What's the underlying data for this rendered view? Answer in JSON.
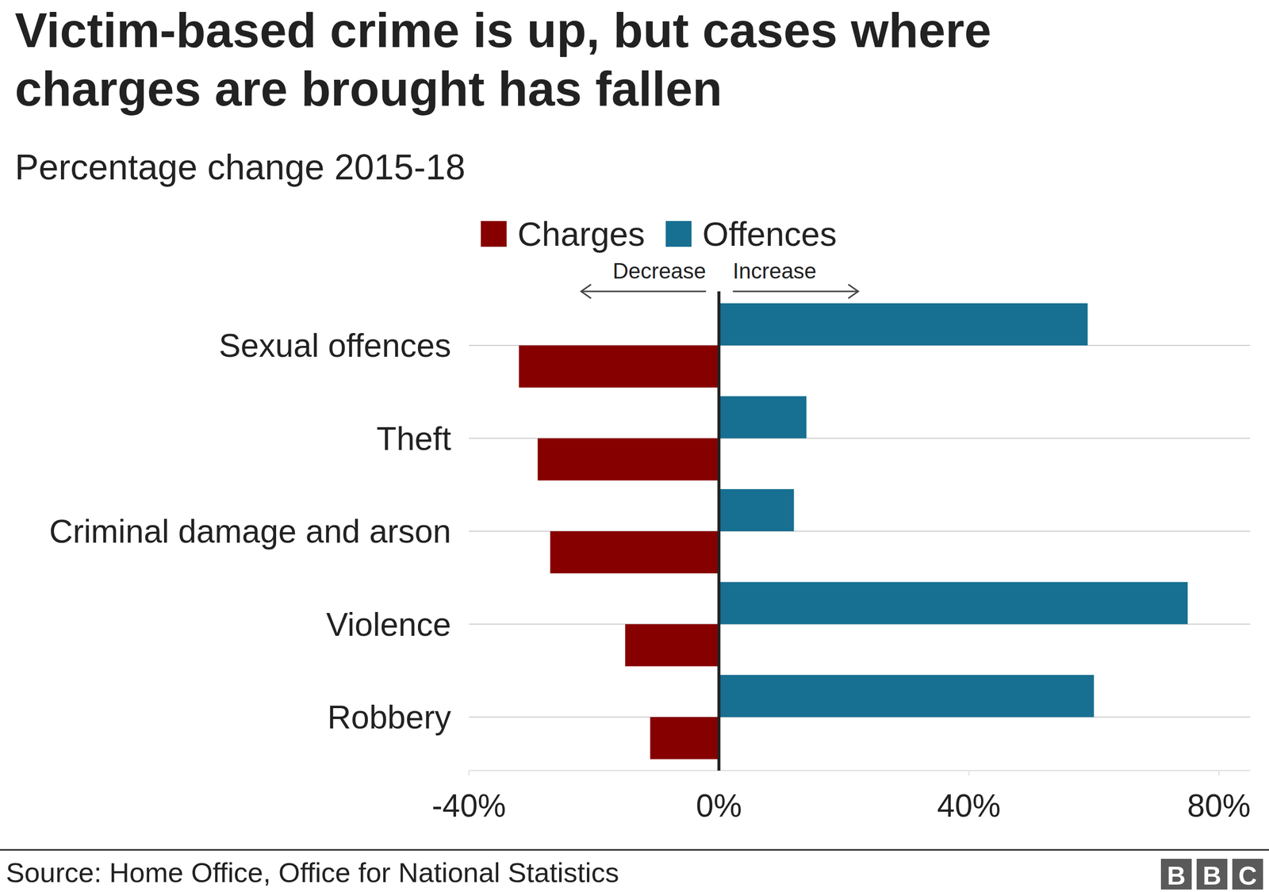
{
  "chart_data": {
    "type": "bar",
    "orientation": "horizontal",
    "title": [
      "Victim-based crime is up, but cases where",
      "charges are brought has fallen"
    ],
    "subtitle": "Percentage change 2015-18",
    "categories": [
      "Sexual offences",
      "Theft",
      "Criminal damage and arson",
      "Violence",
      "Robbery"
    ],
    "series": [
      {
        "name": "Charges",
        "color": "#870000",
        "values": [
          -32,
          -29,
          -27,
          -15,
          -11
        ]
      },
      {
        "name": "Offences",
        "color": "#176f91",
        "values": [
          59,
          14,
          12,
          75,
          60
        ]
      }
    ],
    "xlim": [
      -40,
      85
    ],
    "xticks": [
      {
        "value": -40,
        "label": "-40%"
      },
      {
        "value": 0,
        "label": "0%"
      },
      {
        "value": 40,
        "label": "40%"
      },
      {
        "value": 80,
        "label": "80%"
      }
    ],
    "annotations": [
      "Decrease",
      "Increase"
    ],
    "source": "Source: Home Office, Office for National Statistics",
    "logo": "BBC"
  }
}
